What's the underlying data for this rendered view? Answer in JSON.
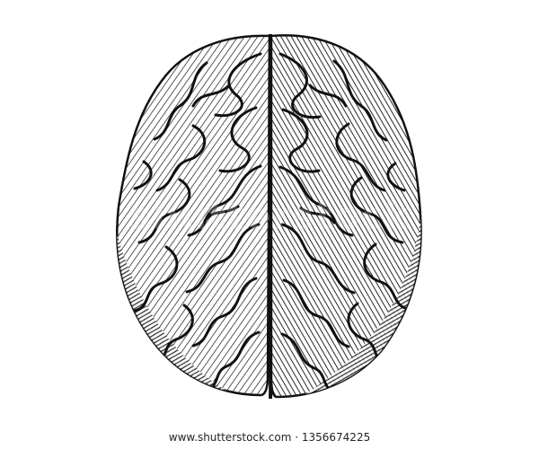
{
  "image": {
    "subject_icon": "brain-engraving-icon",
    "colors": {
      "background": "#ffffff",
      "ink": "#111111",
      "paper": "#f2f2f2"
    }
  },
  "watermark": {
    "text": "shutterstock"
  },
  "footer": {
    "text": "www.shutterstock.com · 1356674225"
  }
}
